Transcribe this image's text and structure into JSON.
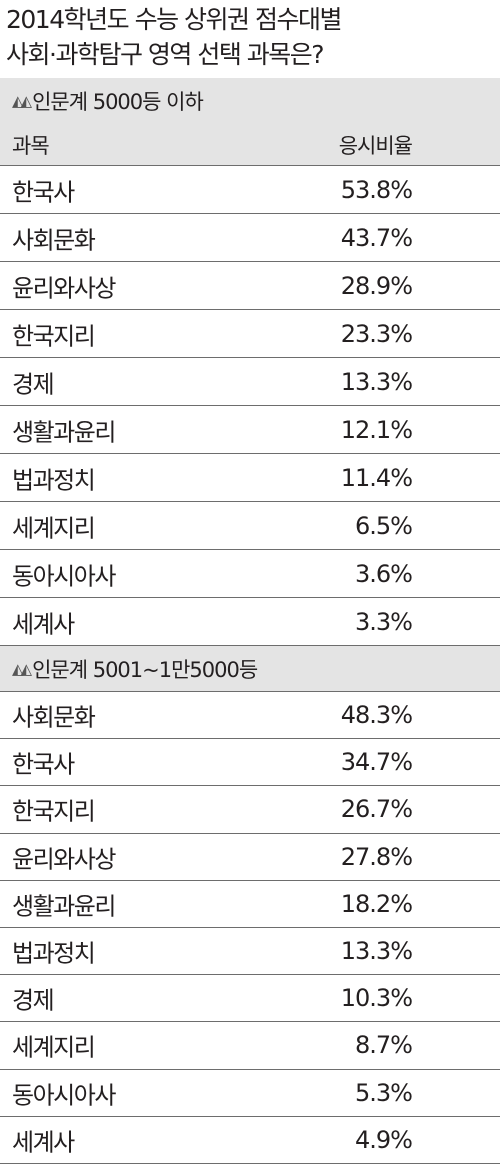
{
  "title": {
    "line1": "2014학년도 수능 상위권 점수대별",
    "line2": "사회·과학탐구 영역 선택 과목은?"
  },
  "columns": {
    "subject": "과목",
    "ratio": "응시비율"
  },
  "sections": [
    {
      "name": "인문계 5000등 이하",
      "rows": [
        {
          "subject": "한국사",
          "value": "53.8%"
        },
        {
          "subject": "사회문화",
          "value": "43.7%"
        },
        {
          "subject": "윤리와사상",
          "value": "28.9%"
        },
        {
          "subject": "한국지리",
          "value": "23.3%"
        },
        {
          "subject": "경제",
          "value": "13.3%"
        },
        {
          "subject": "생활과윤리",
          "value": "12.1%"
        },
        {
          "subject": "법과정치",
          "value": "11.4%"
        },
        {
          "subject": "세계지리",
          "value": "6.5%"
        },
        {
          "subject": "동아시아사",
          "value": "3.6%"
        },
        {
          "subject": "세계사",
          "value": "3.3%"
        }
      ]
    },
    {
      "name": "인문계 5001~1만5000등",
      "rows": [
        {
          "subject": "사회문화",
          "value": "48.3%"
        },
        {
          "subject": "한국사",
          "value": "34.7%"
        },
        {
          "subject": "한국지리",
          "value": "26.7%"
        },
        {
          "subject": "윤리와사상",
          "value": "27.8%"
        },
        {
          "subject": "생활과윤리",
          "value": "18.2%"
        },
        {
          "subject": "법과정치",
          "value": "13.3%"
        },
        {
          "subject": "경제",
          "value": "10.3%"
        },
        {
          "subject": "세계지리",
          "value": "8.7%"
        },
        {
          "subject": "동아시아사",
          "value": "5.3%"
        },
        {
          "subject": "세계사",
          "value": "4.9%"
        }
      ]
    }
  ],
  "colors": {
    "header_bg": "#e4e4e4",
    "rule": "#6d6d6d",
    "text": "#231f20"
  },
  "chart_data": {
    "type": "table",
    "title": "2014학년도 수능 상위권 점수대별 사회·과학탐구 영역 선택 과목은?",
    "columns": [
      "과목",
      "응시비율"
    ],
    "groups": [
      {
        "name": "인문계 5000등 이하",
        "categories": [
          "한국사",
          "사회문화",
          "윤리와사상",
          "한국지리",
          "경제",
          "생활과윤리",
          "법과정치",
          "세계지리",
          "동아시아사",
          "세계사"
        ],
        "values": [
          53.8,
          43.7,
          28.9,
          23.3,
          13.3,
          12.1,
          11.4,
          6.5,
          3.6,
          3.3
        ]
      },
      {
        "name": "인문계 5001~1만5000등",
        "categories": [
          "사회문화",
          "한국사",
          "한국지리",
          "윤리와사상",
          "생활과윤리",
          "법과정치",
          "경제",
          "세계지리",
          "동아시아사",
          "세계사"
        ],
        "values": [
          48.3,
          34.7,
          26.7,
          27.8,
          18.2,
          13.3,
          10.3,
          8.7,
          5.3,
          4.9
        ]
      }
    ]
  }
}
